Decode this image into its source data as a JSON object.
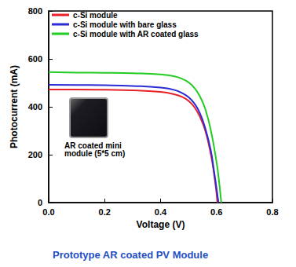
{
  "chart_data": {
    "type": "line",
    "title": "Prototype AR coated PV Module",
    "x_label": "Voltage (V)",
    "y_label": "Photocurrent (mA)",
    "xlim": [
      0,
      0.8
    ],
    "xticks": [
      {
        "value": 0,
        "label": "0.0"
      },
      {
        "value": 0.2,
        "label": "0.2"
      },
      {
        "value": 0.4,
        "label": "0.4"
      },
      {
        "value": 0.6,
        "label": "0.6"
      },
      {
        "value": 0.8,
        "label": "0.8"
      }
    ],
    "ylim": [
      0,
      800
    ],
    "yticks": [
      0,
      200,
      400,
      600,
      800
    ],
    "grid": false,
    "legend": "upper left",
    "line_style": "solid",
    "marker": "none",
    "annotations": [
      "AR coated mini module (5*5 cm)"
    ],
    "series": [
      {
        "name": "c-Si module",
        "color": "#e8202a",
        "x": [
          0,
          0.1,
          0.2,
          0.3,
          0.4,
          0.45,
          0.48,
          0.5,
          0.52,
          0.54,
          0.56,
          0.58,
          0.59,
          0.6,
          0.603
        ],
        "values": [
          472,
          472,
          471,
          469,
          462,
          452,
          440,
          425,
          400,
          360,
          300,
          200,
          130,
          40,
          0
        ]
      },
      {
        "name": "c-Si module with bare glass",
        "color": "#2a2ad6",
        "x": [
          0,
          0.1,
          0.2,
          0.3,
          0.4,
          0.45,
          0.48,
          0.5,
          0.52,
          0.54,
          0.56,
          0.58,
          0.59,
          0.6,
          0.607
        ],
        "values": [
          492,
          491,
          490,
          487,
          480,
          470,
          455,
          440,
          415,
          375,
          310,
          215,
          140,
          60,
          0
        ]
      },
      {
        "name": "c-Si module with AR coated glass",
        "color": "#22cc22",
        "x": [
          0,
          0.1,
          0.2,
          0.3,
          0.4,
          0.45,
          0.48,
          0.5,
          0.52,
          0.54,
          0.56,
          0.58,
          0.6,
          0.61,
          0.617
        ],
        "values": [
          545,
          543,
          542,
          540,
          535,
          527,
          515,
          502,
          480,
          445,
          390,
          300,
          170,
          80,
          0
        ]
      }
    ]
  }
}
